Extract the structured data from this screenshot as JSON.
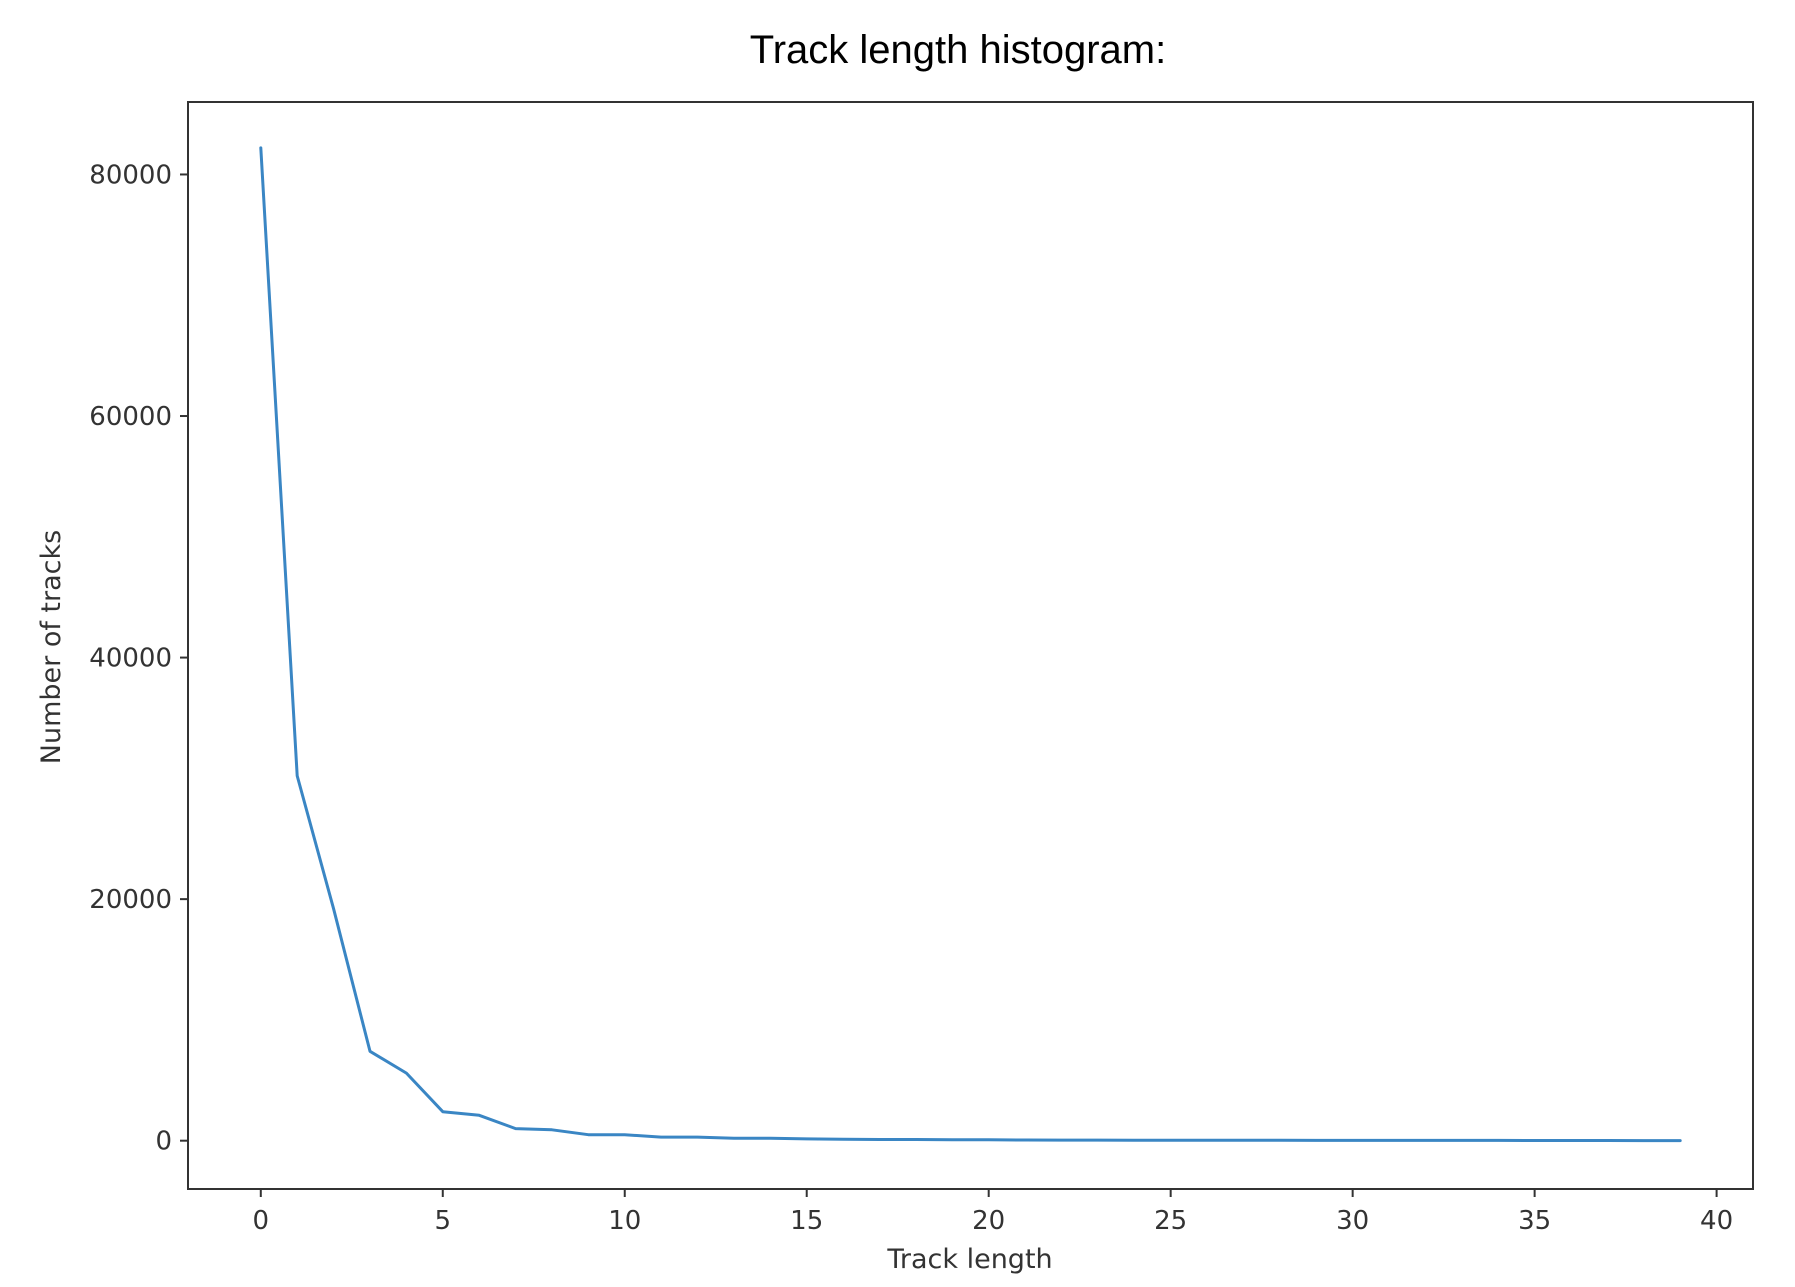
{
  "chart_data": {
    "type": "line",
    "title": "Track length histogram:",
    "xlabel": "Track length",
    "ylabel": "Number of tracks",
    "xlim": [
      -2,
      41
    ],
    "ylim": [
      -4000,
      86000
    ],
    "x_ticks": [
      0,
      5,
      10,
      15,
      20,
      25,
      30,
      35,
      40
    ],
    "y_ticks": [
      0,
      20000,
      40000,
      60000,
      80000
    ],
    "grid": false,
    "series": [
      {
        "color": "#3a86c4",
        "x": [
          0,
          1,
          2,
          3,
          4,
          5,
          6,
          7,
          8,
          9,
          10,
          11,
          12,
          13,
          14,
          15,
          16,
          17,
          18,
          19,
          20,
          21,
          22,
          23,
          24,
          25,
          26,
          27,
          28,
          29,
          30,
          31,
          32,
          33,
          34,
          35,
          36,
          37,
          38,
          39
        ],
        "y": [
          82200,
          30200,
          19200,
          7400,
          5600,
          2400,
          2100,
          1000,
          900,
          500,
          500,
          300,
          300,
          200,
          200,
          150,
          120,
          100,
          100,
          80,
          70,
          60,
          50,
          50,
          40,
          40,
          30,
          30,
          30,
          20,
          20,
          20,
          20,
          20,
          20,
          15,
          15,
          15,
          10,
          10
        ]
      }
    ]
  }
}
